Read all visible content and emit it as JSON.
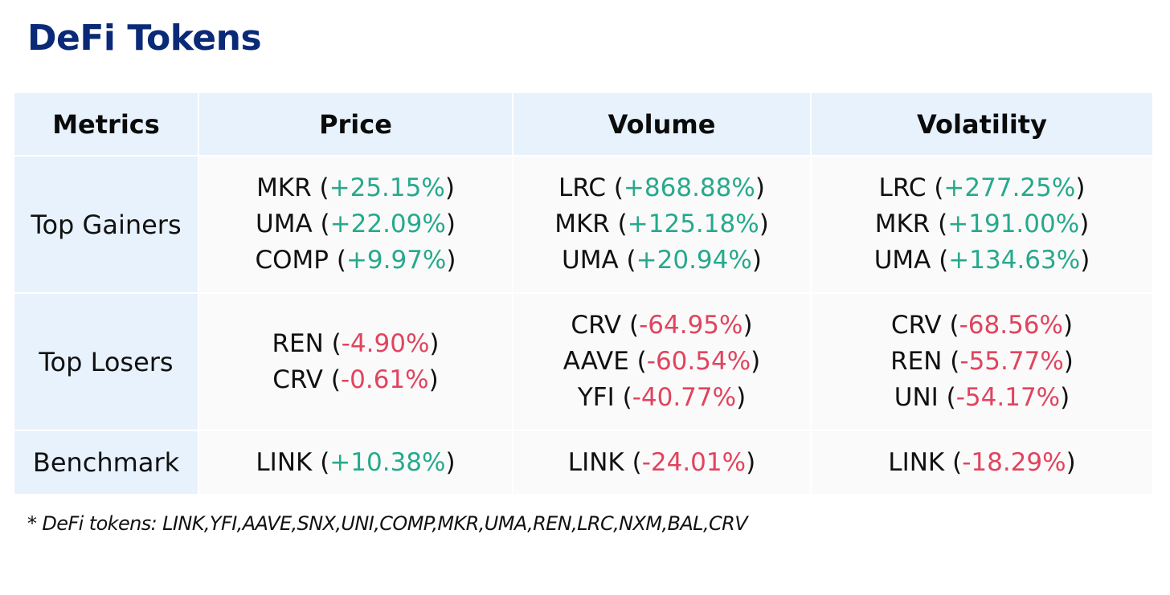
{
  "title": "DeFi Tokens",
  "colors": {
    "title": "#0a2a78",
    "header_bg": "#e7f2fc",
    "cell_bg": "#fafafa",
    "positive": "#27a98d",
    "negative": "#e0445f"
  },
  "table": {
    "headers": [
      "Metrics",
      "Price",
      "Volume",
      "Volatility"
    ],
    "rows": [
      {
        "label": "Top Gainers",
        "cells": [
          [
            {
              "token": "MKR",
              "change": "+25.15%",
              "dir": "pos"
            },
            {
              "token": "UMA",
              "change": "+22.09%",
              "dir": "pos"
            },
            {
              "token": "COMP",
              "change": "+9.97%",
              "dir": "pos"
            }
          ],
          [
            {
              "token": "LRC",
              "change": "+868.88%",
              "dir": "pos"
            },
            {
              "token": "MKR",
              "change": "+125.18%",
              "dir": "pos"
            },
            {
              "token": "UMA",
              "change": "+20.94%",
              "dir": "pos"
            }
          ],
          [
            {
              "token": "LRC",
              "change": "+277.25%",
              "dir": "pos"
            },
            {
              "token": "MKR",
              "change": "+191.00%",
              "dir": "pos"
            },
            {
              "token": "UMA",
              "change": "+134.63%",
              "dir": "pos"
            }
          ]
        ]
      },
      {
        "label": "Top Losers",
        "cells": [
          [
            {
              "token": "REN",
              "change": "-4.90%",
              "dir": "neg"
            },
            {
              "token": "CRV",
              "change": "-0.61%",
              "dir": "neg"
            }
          ],
          [
            {
              "token": "CRV",
              "change": "-64.95%",
              "dir": "neg"
            },
            {
              "token": "AAVE",
              "change": "-60.54%",
              "dir": "neg"
            },
            {
              "token": "YFI",
              "change": "-40.77%",
              "dir": "neg"
            }
          ],
          [
            {
              "token": "CRV",
              "change": "-68.56%",
              "dir": "neg"
            },
            {
              "token": "REN",
              "change": "-55.77%",
              "dir": "neg"
            },
            {
              "token": "UNI",
              "change": "-54.17%",
              "dir": "neg"
            }
          ]
        ]
      },
      {
        "label": "Benchmark",
        "cells": [
          [
            {
              "token": "LINK",
              "change": "+10.38%",
              "dir": "pos"
            }
          ],
          [
            {
              "token": "LINK",
              "change": "-24.01%",
              "dir": "neg"
            }
          ],
          [
            {
              "token": "LINK",
              "change": "-18.29%",
              "dir": "neg"
            }
          ]
        ]
      }
    ]
  },
  "footnote": "* DeFi tokens: LINK,YFI,AAVE,SNX,UNI,COMP,MKR,UMA,REN,LRC,NXM,BAL,CRV"
}
